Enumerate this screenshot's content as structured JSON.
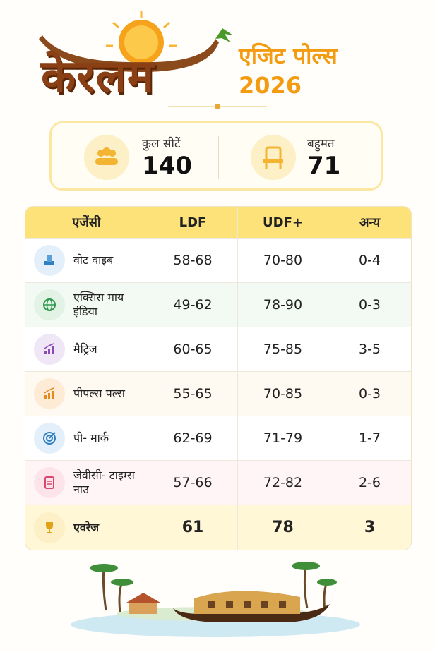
{
  "header": {
    "title": "केरलम",
    "subtitle": "एजिट पोल्स 2026"
  },
  "summary": {
    "total_label": "कुल सीटें",
    "total_value": 140,
    "majority_label": "बहुमत",
    "majority_value": 71
  },
  "table": {
    "headers": [
      "एजेंसी",
      "LDF",
      "UDF+",
      "अन्य"
    ],
    "rows": [
      [
        "वोट वाइब",
        "58-68",
        "70-80",
        "0-4"
      ],
      [
        "एक्सिस माय इंडिया",
        "49-62",
        "78-90",
        "0-3"
      ],
      [
        "मैट्रिज",
        "60-65",
        "75-85",
        "3-5"
      ],
      [
        "पीपल्स पल्स",
        "55-65",
        "70-85",
        "0-3"
      ],
      [
        "पी- मार्क",
        "62-69",
        "71-79",
        "1-7"
      ],
      [
        "जेवीसी- टाइम्स नाउ",
        "57-66",
        "72-82",
        "2-6"
      ]
    ],
    "average": [
      "एवरेज",
      61,
      78,
      3
    ]
  }
}
